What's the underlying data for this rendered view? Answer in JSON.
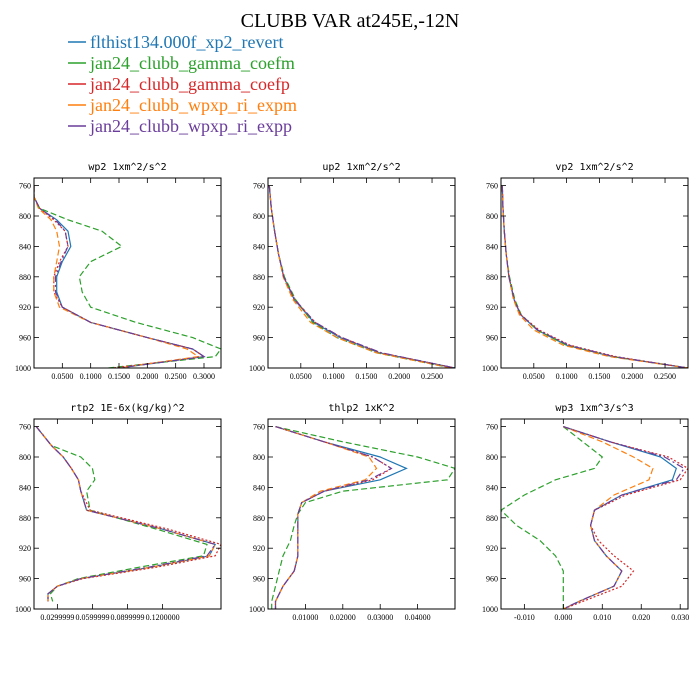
{
  "title": "CLUBB VAR at245E,-12N",
  "legend": [
    {
      "label": "flthist134.000f_xp2_revert",
      "color": "#1f77b4",
      "dash": "solid"
    },
    {
      "label": "jan24_clubb_gamma_coefm",
      "color": "#2ca02c",
      "dash": "dashed"
    },
    {
      "label": "jan24_clubb_gamma_coefp",
      "color": "#d62728",
      "dash": "dotted"
    },
    {
      "label": "jan24_clubb_wpxp_ri_expm",
      "color": "#ff7f0e",
      "dash": "dashed"
    },
    {
      "label": "jan24_clubb_wpxp_ri_expp",
      "color": "#6a3d9a",
      "dash": "dashdot"
    }
  ],
  "chart_data": [
    {
      "type": "line",
      "title": "wp2  1xm^2/s^2",
      "xlim": [
        0,
        0.33
      ],
      "ylim": [
        1000,
        750
      ],
      "xticks": [
        0.05,
        0.1,
        0.15,
        0.2,
        0.25,
        0.3
      ],
      "xticklabels": [
        "0.0500",
        "0.1000",
        "0.1500",
        "0.2000",
        "0.2500",
        "0.3000"
      ],
      "yticks": [
        760,
        800,
        840,
        880,
        920,
        960,
        1000
      ],
      "y": [
        760,
        775,
        790,
        805,
        820,
        840,
        860,
        880,
        900,
        920,
        940,
        960,
        975,
        985,
        1000
      ],
      "series": [
        {
          "name": "flthist134.000f_xp2_revert",
          "values": [
            0.0,
            0.0,
            0.01,
            0.04,
            0.06,
            0.065,
            0.05,
            0.04,
            0.04,
            0.05,
            0.1,
            0.2,
            0.28,
            0.3,
            0.15
          ]
        },
        {
          "name": "jan24_clubb_gamma_coefm",
          "values": [
            0.0,
            0.0,
            0.01,
            0.06,
            0.12,
            0.155,
            0.1,
            0.08,
            0.085,
            0.1,
            0.18,
            0.28,
            0.33,
            0.32,
            0.13
          ]
        },
        {
          "name": "jan24_clubb_gamma_coefp",
          "values": [
            0.0,
            0.0,
            0.01,
            0.035,
            0.055,
            0.06,
            0.045,
            0.035,
            0.035,
            0.05,
            0.1,
            0.2,
            0.28,
            0.3,
            0.14
          ]
        },
        {
          "name": "jan24_clubb_wpxp_ri_expm",
          "values": [
            0.0,
            0.0,
            0.008,
            0.03,
            0.04,
            0.045,
            0.04,
            0.035,
            0.035,
            0.045,
            0.1,
            0.2,
            0.27,
            0.29,
            0.15
          ]
        },
        {
          "name": "jan24_clubb_wpxp_ri_expp",
          "values": [
            0.0,
            0.0,
            0.01,
            0.038,
            0.055,
            0.06,
            0.048,
            0.038,
            0.038,
            0.05,
            0.1,
            0.2,
            0.28,
            0.3,
            0.15
          ]
        }
      ]
    },
    {
      "type": "line",
      "title": "up2  1xm^2/s^2",
      "xlim": [
        0,
        0.285
      ],
      "ylim": [
        1000,
        750
      ],
      "xticks": [
        0.05,
        0.1,
        0.15,
        0.2,
        0.25
      ],
      "xticklabels": [
        "0.0500",
        "0.1000",
        "0.1500",
        "0.2000",
        "0.2500"
      ],
      "yticks": [
        760,
        800,
        840,
        880,
        920,
        960,
        1000
      ],
      "y": [
        760,
        790,
        820,
        850,
        880,
        910,
        940,
        960,
        980,
        1000
      ],
      "series": [
        {
          "name": "flthist134.000f_xp2_revert",
          "values": [
            0.002,
            0.005,
            0.01,
            0.016,
            0.024,
            0.04,
            0.07,
            0.11,
            0.17,
            0.285
          ]
        },
        {
          "name": "jan24_clubb_gamma_coefm",
          "values": [
            0.002,
            0.005,
            0.01,
            0.016,
            0.025,
            0.042,
            0.068,
            0.105,
            0.165,
            0.28
          ]
        },
        {
          "name": "jan24_clubb_gamma_coefp",
          "values": [
            0.002,
            0.005,
            0.01,
            0.016,
            0.024,
            0.04,
            0.072,
            0.112,
            0.172,
            0.285
          ]
        },
        {
          "name": "jan24_clubb_wpxp_ri_expm",
          "values": [
            0.002,
            0.005,
            0.01,
            0.016,
            0.023,
            0.038,
            0.065,
            0.105,
            0.165,
            0.28
          ]
        },
        {
          "name": "jan24_clubb_wpxp_ri_expp",
          "values": [
            0.002,
            0.005,
            0.01,
            0.016,
            0.024,
            0.041,
            0.072,
            0.113,
            0.173,
            0.285
          ]
        }
      ]
    },
    {
      "type": "line",
      "title": "vp2  1xm^2/s^2",
      "xlim": [
        0,
        0.285
      ],
      "ylim": [
        1000,
        750
      ],
      "xticks": [
        0.05,
        0.1,
        0.15,
        0.2,
        0.25
      ],
      "xticklabels": [
        "0.0500",
        "0.1000",
        "0.1500",
        "0.2000",
        "0.2500"
      ],
      "yticks": [
        760,
        800,
        840,
        880,
        920,
        960,
        1000
      ],
      "y": [
        760,
        790,
        820,
        850,
        880,
        910,
        930,
        950,
        970,
        985,
        1000
      ],
      "series": [
        {
          "name": "flthist134.000f_xp2_revert",
          "values": [
            0.002,
            0.003,
            0.005,
            0.008,
            0.012,
            0.02,
            0.03,
            0.055,
            0.1,
            0.17,
            0.285
          ]
        },
        {
          "name": "jan24_clubb_gamma_coefm",
          "values": [
            0.002,
            0.003,
            0.005,
            0.008,
            0.013,
            0.021,
            0.031,
            0.055,
            0.1,
            0.17,
            0.285
          ]
        },
        {
          "name": "jan24_clubb_gamma_coefp",
          "values": [
            0.002,
            0.003,
            0.005,
            0.008,
            0.012,
            0.02,
            0.03,
            0.058,
            0.105,
            0.175,
            0.285
          ]
        },
        {
          "name": "jan24_clubb_wpxp_ri_expm",
          "values": [
            0.002,
            0.003,
            0.005,
            0.008,
            0.012,
            0.019,
            0.028,
            0.05,
            0.095,
            0.165,
            0.285
          ]
        },
        {
          "name": "jan24_clubb_wpxp_ri_expp",
          "values": [
            0.002,
            0.003,
            0.005,
            0.008,
            0.012,
            0.02,
            0.03,
            0.056,
            0.103,
            0.172,
            0.285
          ]
        }
      ]
    },
    {
      "type": "line",
      "title": "rtp2  1E-6x(kg/kg)^2",
      "xlim": [
        0.01,
        0.17
      ],
      "ylim": [
        1000,
        750
      ],
      "xticks": [
        0.03,
        0.06,
        0.09,
        0.12
      ],
      "xticklabels": [
        "0.0299999",
        "0.0599999",
        "0.0899999",
        "0.1200000"
      ],
      "yticks": [
        760,
        800,
        840,
        880,
        920,
        960,
        1000
      ],
      "y": [
        760,
        785,
        800,
        815,
        830,
        845,
        870,
        895,
        915,
        930,
        945,
        960,
        970,
        980,
        990
      ],
      "series": [
        {
          "name": "flthist134.000f_xp2_revert",
          "values": [
            0.012,
            0.025,
            0.035,
            0.042,
            0.048,
            0.05,
            0.055,
            0.12,
            0.165,
            0.16,
            0.11,
            0.05,
            0.03,
            0.022,
            0.022
          ]
        },
        {
          "name": "jan24_clubb_gamma_coefm",
          "values": [
            0.012,
            0.025,
            0.05,
            0.06,
            0.062,
            0.055,
            0.058,
            0.115,
            0.158,
            0.155,
            0.1,
            0.048,
            0.03,
            0.024,
            0.026
          ]
        },
        {
          "name": "jan24_clubb_gamma_coefp",
          "values": [
            0.012,
            0.025,
            0.035,
            0.042,
            0.048,
            0.05,
            0.058,
            0.125,
            0.17,
            0.165,
            0.115,
            0.052,
            0.03,
            0.022,
            0.022
          ]
        },
        {
          "name": "jan24_clubb_wpxp_ri_expm",
          "values": [
            0.012,
            0.025,
            0.035,
            0.042,
            0.048,
            0.05,
            0.055,
            0.12,
            0.165,
            0.16,
            0.11,
            0.05,
            0.03,
            0.022,
            0.022
          ]
        },
        {
          "name": "jan24_clubb_wpxp_ri_expp",
          "values": [
            0.012,
            0.025,
            0.035,
            0.042,
            0.048,
            0.05,
            0.055,
            0.12,
            0.165,
            0.158,
            0.108,
            0.05,
            0.03,
            0.022,
            0.022
          ]
        }
      ]
    },
    {
      "type": "line",
      "title": "thlp2  1xK^2",
      "xlim": [
        0,
        0.05
      ],
      "ylim": [
        1000,
        750
      ],
      "xticks": [
        0.01,
        0.02,
        0.03,
        0.04
      ],
      "xticklabels": [
        "0.01000",
        "0.02000",
        "0.03000",
        "0.04000"
      ],
      "yticks": [
        760,
        800,
        840,
        880,
        920,
        960,
        1000
      ],
      "y": [
        760,
        780,
        800,
        815,
        830,
        845,
        860,
        875,
        890,
        910,
        930,
        950,
        970,
        990,
        1000
      ],
      "series": [
        {
          "name": "flthist134.000f_xp2_revert",
          "values": [
            0.002,
            0.015,
            0.03,
            0.037,
            0.03,
            0.015,
            0.009,
            0.008,
            0.008,
            0.008,
            0.008,
            0.007,
            0.004,
            0.002,
            0.002
          ]
        },
        {
          "name": "jan24_clubb_gamma_coefm",
          "values": [
            0.002,
            0.02,
            0.04,
            0.05,
            0.048,
            0.02,
            0.01,
            0.008,
            0.007,
            0.006,
            0.004,
            0.003,
            0.002,
            0.001,
            0.001
          ]
        },
        {
          "name": "jan24_clubb_gamma_coefp",
          "values": [
            0.002,
            0.015,
            0.028,
            0.033,
            0.028,
            0.015,
            0.009,
            0.008,
            0.008,
            0.008,
            0.008,
            0.007,
            0.004,
            0.002,
            0.002
          ]
        },
        {
          "name": "jan24_clubb_wpxp_ri_expm",
          "values": [
            0.002,
            0.015,
            0.027,
            0.029,
            0.026,
            0.014,
            0.009,
            0.008,
            0.008,
            0.008,
            0.008,
            0.007,
            0.004,
            0.002,
            0.002
          ]
        },
        {
          "name": "jan24_clubb_wpxp_ri_expp",
          "values": [
            0.002,
            0.015,
            0.028,
            0.033,
            0.027,
            0.015,
            0.009,
            0.008,
            0.008,
            0.008,
            0.008,
            0.007,
            0.004,
            0.002,
            0.002
          ]
        }
      ]
    },
    {
      "type": "line",
      "title": "wp3  1xm^3/s^3",
      "xlim": [
        -0.016,
        0.032
      ],
      "ylim": [
        1000,
        750
      ],
      "xticks": [
        -0.01,
        0.0,
        0.01,
        0.02,
        0.03
      ],
      "xticklabels": [
        "-0.010",
        "0.000",
        "0.010",
        "0.020",
        "0.030"
      ],
      "yticks": [
        760,
        800,
        840,
        880,
        920,
        960,
        1000
      ],
      "y": [
        760,
        780,
        800,
        815,
        830,
        850,
        870,
        890,
        910,
        930,
        950,
        970,
        990,
        1000
      ],
      "series": [
        {
          "name": "flthist134.000f_xp2_revert",
          "values": [
            0.0,
            0.012,
            0.025,
            0.029,
            0.028,
            0.015,
            0.008,
            0.007,
            0.008,
            0.011,
            0.015,
            0.013,
            0.004,
            0.0
          ]
        },
        {
          "name": "jan24_clubb_gamma_coefm",
          "values": [
            0.0,
            0.005,
            0.01,
            0.008,
            -0.002,
            -0.01,
            -0.016,
            -0.012,
            -0.006,
            -0.002,
            0.0,
            0.0,
            0.0,
            0.0
          ]
        },
        {
          "name": "jan24_clubb_gamma_coefp",
          "values": [
            0.0,
            0.012,
            0.027,
            0.032,
            0.03,
            0.016,
            0.008,
            0.007,
            0.009,
            0.013,
            0.018,
            0.015,
            0.005,
            0.0
          ]
        },
        {
          "name": "jan24_clubb_wpxp_ri_expm",
          "values": [
            0.0,
            0.01,
            0.018,
            0.023,
            0.022,
            0.013,
            0.008,
            0.007,
            0.008,
            0.011,
            0.015,
            0.013,
            0.004,
            0.0
          ]
        },
        {
          "name": "jan24_clubb_wpxp_ri_expp",
          "values": [
            0.0,
            0.012,
            0.026,
            0.031,
            0.029,
            0.015,
            0.008,
            0.007,
            0.008,
            0.011,
            0.015,
            0.013,
            0.004,
            0.0
          ]
        }
      ]
    }
  ]
}
